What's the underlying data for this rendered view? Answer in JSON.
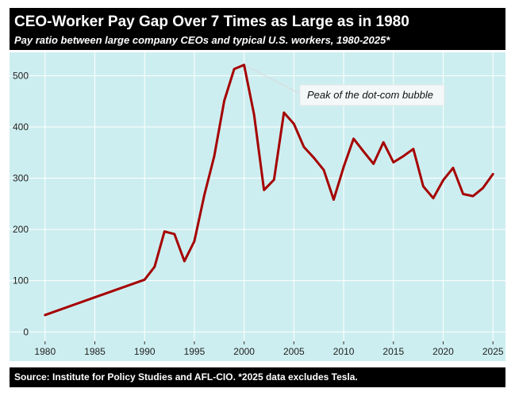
{
  "header": {
    "title": "CEO-Worker Pay Gap Over 7 Times as Large as in 1980",
    "subtitle": "Pay ratio between large company CEOs and typical U.S. workers, 1980-2025*"
  },
  "footer": {
    "source": "Source: Institute for Policy Studies and AFL-CIO. *2025 data excludes Tesla."
  },
  "chart_data": {
    "type": "line",
    "title": "CEO-Worker Pay Gap Over 7 Times as Large as in 1980",
    "subtitle": "Pay ratio between large company CEOs and typical U.S. workers, 1980-2025*",
    "xlabel": "",
    "ylabel": "",
    "xlim": [
      1979.3,
      2025.7
    ],
    "ylim": [
      -12,
      530
    ],
    "x_ticks": [
      1980,
      1985,
      1990,
      1995,
      2000,
      2005,
      2010,
      2015,
      2020,
      2025
    ],
    "y_ticks": [
      0,
      100,
      200,
      300,
      400,
      500
    ],
    "grid": true,
    "legend": "none",
    "line_color": "#a50000",
    "background_color": "#cdeef0",
    "series": [
      {
        "x": [
          1980,
          1990,
          1991,
          1992,
          1993,
          1994,
          1995,
          1996,
          1997,
          1998,
          1999,
          2000,
          2001,
          2002,
          2003,
          2004,
          2005,
          2006,
          2007,
          2008,
          2009,
          2010,
          2011,
          2012,
          2013,
          2014,
          2015,
          2016,
          2017,
          2018,
          2019,
          2020,
          2021,
          2022,
          2023,
          2024,
          2025
        ],
        "values": [
          33,
          102,
          127,
          196,
          191,
          138,
          177,
          267,
          343,
          451,
          513,
          521,
          424,
          277,
          297,
          428,
          406,
          361,
          340,
          316,
          258,
          322,
          377,
          352,
          328,
          370,
          331,
          343,
          357,
          284,
          261,
          296,
          320,
          269,
          265,
          281,
          308
        ]
      }
    ],
    "annotations": [
      {
        "text": "Peak of the dot-com bubble",
        "x": 2000,
        "y": 521
      }
    ]
  }
}
